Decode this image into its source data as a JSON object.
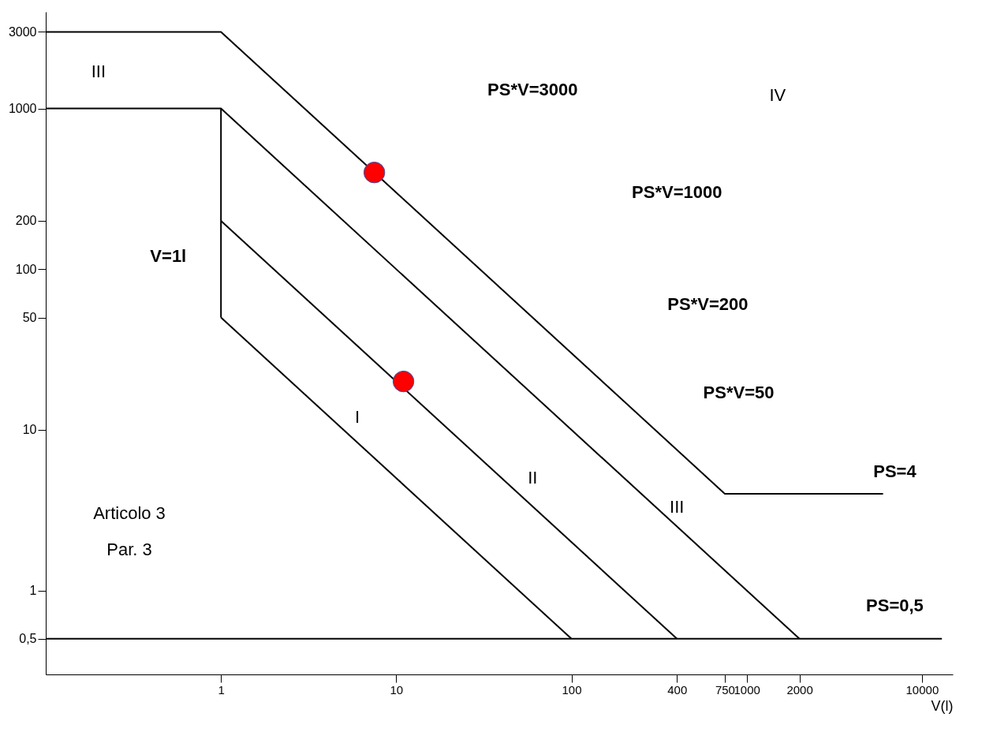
{
  "chart_data": {
    "type": "line",
    "xlabel": "V(l)",
    "log": "xy",
    "grid": false,
    "xlim": [
      0.1,
      15000
    ],
    "ylim": [
      0.3,
      4000
    ],
    "xticks": [
      1,
      10,
      100,
      400,
      750,
      1000,
      2000,
      10000
    ],
    "yticks": [
      {
        "value": 0.5,
        "label": "0,5"
      },
      1,
      10,
      50,
      100,
      200,
      1000,
      3000
    ],
    "series": [
      {
        "color": "#000000",
        "x": [
          0.1,
          1,
          750,
          6000
        ],
        "values": [
          3000,
          3000,
          4,
          4
        ]
      },
      {
        "color": "#000000",
        "x": [
          0.1,
          1,
          2000
        ],
        "values": [
          1000,
          1000,
          0.5
        ]
      },
      {
        "color": "#000000",
        "x": [
          1,
          400
        ],
        "values": [
          200,
          0.5
        ]
      },
      {
        "color": "#000000",
        "x": [
          1,
          100
        ],
        "values": [
          50,
          0.5
        ]
      },
      {
        "color": "#000000",
        "x": [
          1,
          1
        ],
        "values": [
          50,
          1000
        ]
      },
      {
        "color": "#000000",
        "x": [
          0.1,
          13000
        ],
        "values": [
          0.5,
          0.5
        ]
      },
      {
        "type": "scatter",
        "color": "#ff0000",
        "x": [
          7.5,
          11
        ],
        "values": [
          400,
          20
        ]
      }
    ],
    "annotations": [
      "PS*V=3000",
      "PS*V=1000",
      "PS*V=200",
      "PS*V=50",
      "III",
      "IV",
      "I",
      "II",
      "III",
      "V=1l",
      "Articolo 3",
      "Par. 3",
      "PS=4",
      "PS=0,5"
    ]
  }
}
